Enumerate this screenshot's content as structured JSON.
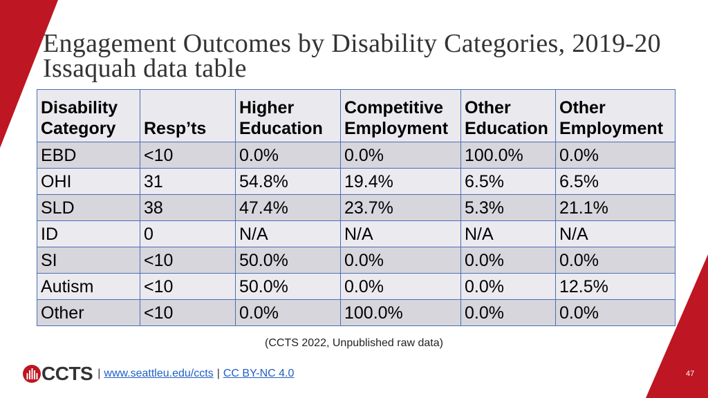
{
  "slide": {
    "title_line1": "Engagement Outcomes by Disability Categories, 2019-20",
    "title_line2": "Issaquah data table",
    "footnote": "(CCTS 2022, Unpublished raw data)",
    "page_number": "47"
  },
  "table": {
    "headers": [
      [
        "Disability",
        "Category"
      ],
      [
        "Resp’ts"
      ],
      [
        "Higher",
        "Education"
      ],
      [
        "Competitive",
        "Employment"
      ],
      [
        "Other",
        "Education"
      ],
      [
        "Other",
        "Employment"
      ]
    ],
    "rows": [
      [
        "EBD",
        "<10",
        "0.0%",
        "0.0%",
        "100.0%",
        "0.0%"
      ],
      [
        "OHI",
        "31",
        "54.8%",
        "19.4%",
        "6.5%",
        "6.5%"
      ],
      [
        "SLD",
        "38",
        "47.4%",
        "23.7%",
        "5.3%",
        "21.1%"
      ],
      [
        "ID",
        "0",
        "N/A",
        "N/A",
        "N/A",
        "N/A"
      ],
      [
        "SI",
        "<10",
        "50.0%",
        "0.0%",
        "0.0%",
        "0.0%"
      ],
      [
        "Autism",
        "<10",
        "50.0%",
        "0.0%",
        "0.0%",
        "12.5%"
      ],
      [
        "Other",
        "<10",
        "0.0%",
        "100.0%",
        "0.0%",
        "0.0%"
      ]
    ]
  },
  "footer": {
    "logo_text": "CCTS",
    "separator": "|",
    "website": "www.seattleu.edu/ccts",
    "license": "CC BY-NC 4.0"
  },
  "colors": {
    "accent": "#be1622",
    "border": "#4a6db3",
    "hdr": "#eaeaee",
    "dark": "#d6d6dc",
    "light": "#ebebef",
    "link": "#1f5fc4"
  }
}
